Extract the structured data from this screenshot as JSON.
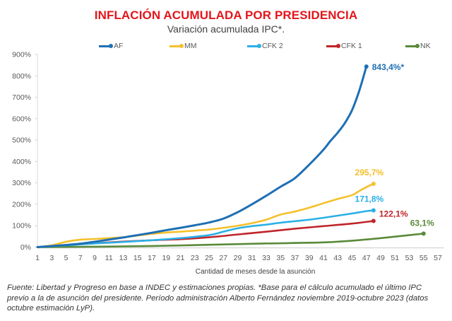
{
  "chart_data": {
    "type": "line",
    "title": "INFLACIÓN ACUMULADA POR PRESIDENCIA",
    "subtitle": "Variación acumulada IPC*.",
    "xlabel": "Cantidad de meses desde la asunción",
    "ylabel": "",
    "xlim": [
      1,
      57
    ],
    "ylim": [
      0,
      900
    ],
    "x_ticks": [
      1,
      3,
      5,
      7,
      9,
      11,
      13,
      15,
      17,
      19,
      21,
      23,
      25,
      27,
      29,
      31,
      33,
      35,
      37,
      39,
      41,
      43,
      45,
      47,
      49,
      51,
      53,
      55,
      57
    ],
    "y_ticks": [
      0,
      100,
      200,
      300,
      400,
      500,
      600,
      700,
      800,
      900
    ],
    "y_tick_labels": [
      "0%",
      "100%",
      "200%",
      "300%",
      "400%",
      "500%",
      "600%",
      "700%",
      "800%",
      "900%"
    ],
    "grid": false,
    "legend_position": "top",
    "series": [
      {
        "name": "AF",
        "color": "#1f6fb4",
        "x": [
          1,
          3,
          5,
          7,
          9,
          11,
          13,
          15,
          17,
          19,
          21,
          23,
          25,
          27,
          29,
          31,
          33,
          35,
          37,
          39,
          41,
          42,
          43,
          44,
          45,
          46,
          47
        ],
        "values": [
          0,
          5,
          10,
          16,
          25,
          35,
          45,
          56,
          67,
          79,
          90,
          102,
          115,
          133,
          163,
          200,
          240,
          282,
          322,
          385,
          455,
          497,
          535,
          580,
          640,
          730,
          843.4
        ],
        "end_label": "843,4%*"
      },
      {
        "name": "MM",
        "color": "#f5c02b",
        "x": [
          1,
          3,
          5,
          7,
          9,
          11,
          13,
          15,
          17,
          19,
          21,
          23,
          25,
          27,
          29,
          31,
          33,
          35,
          37,
          39,
          41,
          43,
          45,
          46,
          47,
          48
        ],
        "values": [
          0,
          8,
          25,
          35,
          38,
          42,
          46,
          54,
          62,
          68,
          72,
          77,
          82,
          90,
          100,
          112,
          128,
          152,
          166,
          184,
          205,
          225,
          243,
          262,
          280,
          295.7
        ],
        "end_label": "295,7%"
      },
      {
        "name": "CFK 2",
        "color": "#2bb0e6",
        "x": [
          1,
          5,
          9,
          13,
          17,
          21,
          25,
          27,
          29,
          31,
          33,
          35,
          37,
          39,
          41,
          43,
          45,
          47,
          48
        ],
        "values": [
          0,
          8,
          17,
          24,
          32,
          42,
          56,
          72,
          88,
          98,
          105,
          114,
          121,
          128,
          137,
          147,
          157,
          168,
          171.8
        ],
        "end_label": "171,8%"
      },
      {
        "name": "CFK 1",
        "color": "#c0252a",
        "x": [
          1,
          5,
          9,
          13,
          17,
          21,
          25,
          29,
          33,
          37,
          41,
          45,
          48
        ],
        "values": [
          0,
          9,
          18,
          26,
          32,
          37,
          46,
          59,
          72,
          86,
          98,
          110,
          122.1
        ],
        "end_label": "122,1%"
      },
      {
        "name": "NK",
        "color": "#5a8a3a",
        "x": [
          1,
          9,
          17,
          25,
          33,
          41,
          45,
          49,
          53,
          55
        ],
        "values": [
          0,
          2,
          5,
          11,
          17,
          22,
          30,
          42,
          56,
          63.1
        ],
        "end_label": "63,1%"
      }
    ]
  },
  "footer": "Fuente: Libertad y Progreso en base a INDEC y estimaciones propias. *Base para el cálculo acumulado el último IPC previo a la de asunción del presidente. Período administración Alberto Fernández noviembre 2019-octubre 2023 (datos octubre estimación LyP)."
}
